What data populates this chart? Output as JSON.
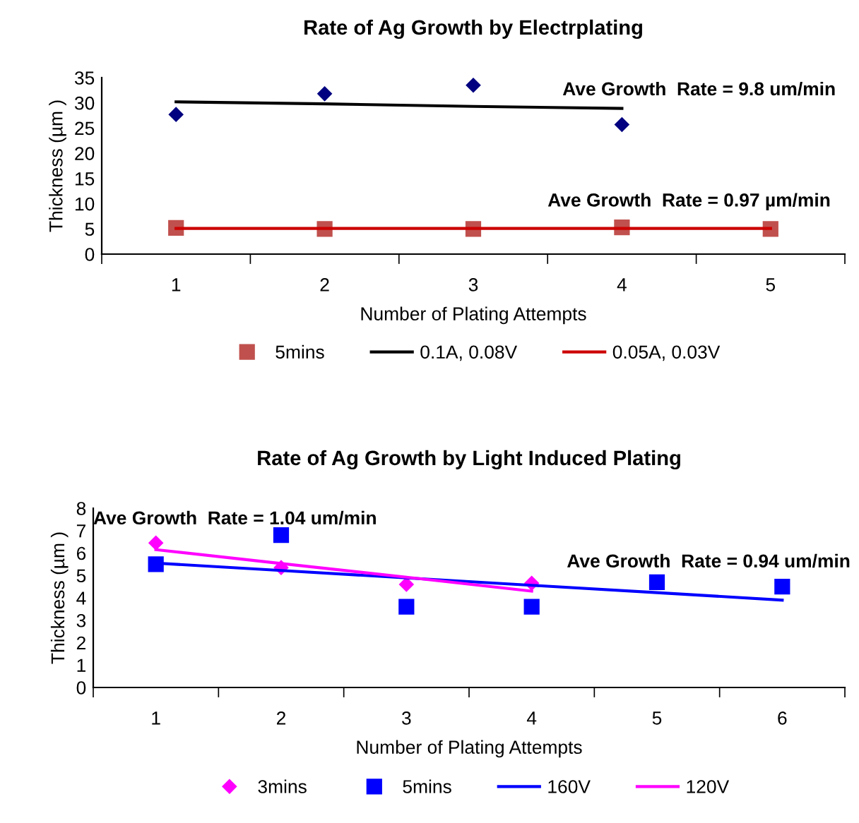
{
  "chart_data": [
    {
      "type": "scatter",
      "title": "Rate of Ag Growth by Electrplating",
      "xlabel": "Number of Plating Attempts",
      "ylabel": "Thickness (µm )",
      "categories": [
        "1",
        "2",
        "3",
        "4",
        "5"
      ],
      "series": [
        {
          "color": "#000080",
          "marker": "diamond",
          "values": [
            27.7,
            31.8,
            33.5,
            25.7,
            null
          ]
        },
        {
          "name": "5mins",
          "color": "#c0504d",
          "marker": "square",
          "values": [
            5.2,
            5.0,
            5.0,
            5.3,
            5.0
          ]
        },
        {
          "type": "line",
          "name": "0.1A, 0.08V",
          "color": "#000000",
          "values": [
            30.2,
            29.8,
            29.3,
            28.9,
            null
          ]
        },
        {
          "type": "line",
          "name": "0.05A, 0.03V",
          "color": "#cc0000",
          "values": [
            5.1,
            5.1,
            5.1,
            5.1,
            5.1
          ]
        }
      ],
      "ylim": [
        0,
        35
      ],
      "yticks": [
        0,
        5,
        10,
        15,
        20,
        25,
        30,
        35
      ],
      "legend": "bottom",
      "grid": false,
      "annotations": [
        "Ave Growth  Rate = 9.8 um/min",
        "Ave Growth  Rate = 0.97 µm/min"
      ]
    },
    {
      "type": "scatter",
      "title": "Rate of Ag Growth by Light Induced Plating",
      "xlabel": "Number of Plating Attempts",
      "ylabel": "Thickness (µm )",
      "categories": [
        "1",
        "2",
        "3",
        "4",
        "5",
        "6"
      ],
      "series": [
        {
          "name": "3mins",
          "color": "#ff00ff",
          "marker": "diamond",
          "values": [
            6.45,
            5.35,
            4.6,
            4.65,
            null,
            null
          ]
        },
        {
          "name": "5mins",
          "color": "#0000ff",
          "marker": "square",
          "values": [
            5.5,
            6.8,
            3.6,
            3.6,
            4.7,
            4.5
          ]
        },
        {
          "type": "line",
          "name": "160V",
          "color": "#0000ff",
          "values": [
            5.55,
            5.22,
            4.89,
            4.56,
            4.23,
            3.9
          ]
        },
        {
          "type": "line",
          "name": "120V",
          "color": "#ff00ff",
          "values": [
            6.15,
            5.53,
            4.92,
            4.3,
            null,
            null
          ]
        }
      ],
      "ylim": [
        0,
        8
      ],
      "yticks": [
        0,
        1,
        2,
        3,
        4,
        5,
        6,
        7,
        8
      ],
      "legend": "bottom",
      "grid": false,
      "annotations": [
        "Ave Growth  Rate = 1.04 um/min",
        "Ave Growth  Rate = 0.94 um/min"
      ]
    }
  ]
}
